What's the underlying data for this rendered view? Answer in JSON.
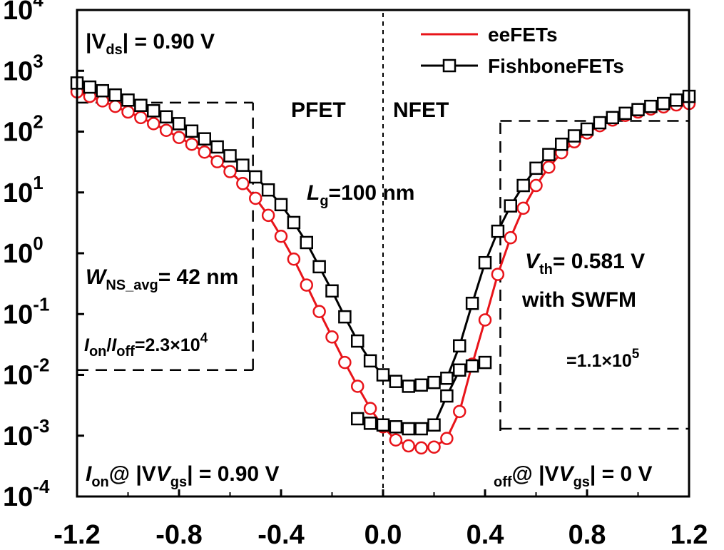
{
  "chart_data": {
    "type": "line",
    "title": "",
    "xlabel": "",
    "ylabel": "",
    "xlim": [
      -1.2,
      1.2
    ],
    "ylim_log10": [
      -4,
      4
    ],
    "y_scale": "log",
    "grid": false,
    "x_ticks": [
      "-1.2",
      "-0.8",
      "-0.4",
      "0.0",
      "0.4",
      "0.8",
      "1.2"
    ],
    "y_ticks": [
      {
        "base": "10",
        "exp": "4"
      },
      {
        "base": "10",
        "exp": "3"
      },
      {
        "base": "10",
        "exp": "2"
      },
      {
        "base": "10",
        "exp": "1"
      },
      {
        "base": "10",
        "exp": "0"
      },
      {
        "base": "10",
        "exp": "-1"
      },
      {
        "base": "10",
        "exp": "-2"
      },
      {
        "base": "10",
        "exp": "-3"
      },
      {
        "base": "10",
        "exp": "-4"
      }
    ],
    "legend": {
      "placement": "top-right",
      "entries": [
        {
          "label": "eeFETs",
          "marker": "circle",
          "color": "#e8141a"
        },
        {
          "label": "FishboneFETs",
          "marker": "square",
          "color": "#000000"
        }
      ]
    },
    "series": [
      {
        "marker": "circle",
        "color": "#e8141a",
        "points": [
          [
            -1.2,
            450
          ],
          [
            -1.15,
            380
          ],
          [
            -1.1,
            320
          ],
          [
            -1.05,
            260
          ],
          [
            -1.0,
            210
          ],
          [
            -0.95,
            170
          ],
          [
            -0.9,
            135
          ],
          [
            -0.85,
            105
          ],
          [
            -0.8,
            80
          ],
          [
            -0.75,
            62
          ],
          [
            -0.7,
            46
          ],
          [
            -0.65,
            32
          ],
          [
            -0.6,
            22
          ],
          [
            -0.55,
            14
          ],
          [
            -0.5,
            8
          ],
          [
            -0.45,
            4.2
          ],
          [
            -0.4,
            1.9
          ],
          [
            -0.35,
            0.8
          ],
          [
            -0.3,
            0.3
          ],
          [
            -0.25,
            0.11
          ],
          [
            -0.2,
            0.042
          ],
          [
            -0.15,
            0.016
          ],
          [
            -0.1,
            0.0065
          ],
          [
            -0.05,
            0.0028
          ],
          [
            0.0,
            0.0014
          ],
          [
            0.05,
            0.00085
          ],
          [
            0.1,
            0.00068
          ],
          [
            0.15,
            0.00063
          ],
          [
            0.2,
            0.00065
          ],
          [
            0.25,
            0.0009
          ],
          [
            0.3,
            0.0025
          ],
          [
            0.35,
            0.015
          ],
          [
            0.4,
            0.08
          ],
          [
            0.45,
            0.45
          ],
          [
            0.5,
            1.8
          ],
          [
            0.55,
            5.5
          ],
          [
            0.6,
            13
          ],
          [
            0.65,
            26
          ],
          [
            0.7,
            45
          ],
          [
            0.75,
            68
          ],
          [
            0.8,
            95
          ],
          [
            0.85,
            125
          ],
          [
            0.9,
            155
          ],
          [
            0.95,
            185
          ],
          [
            1.0,
            210
          ],
          [
            1.05,
            235
          ],
          [
            1.1,
            255
          ],
          [
            1.15,
            275
          ],
          [
            1.2,
            290
          ]
        ]
      },
      {
        "marker": "square",
        "color": "#000000",
        "points": [
          [
            -1.2,
            630
          ],
          [
            -1.15,
            540
          ],
          [
            -1.1,
            470
          ],
          [
            -1.05,
            400
          ],
          [
            -1.0,
            330
          ],
          [
            -0.95,
            270
          ],
          [
            -0.9,
            220
          ],
          [
            -0.85,
            175
          ],
          [
            -0.8,
            135
          ],
          [
            -0.75,
            102
          ],
          [
            -0.7,
            76
          ],
          [
            -0.65,
            56
          ],
          [
            -0.6,
            40
          ],
          [
            -0.55,
            28
          ],
          [
            -0.5,
            18
          ],
          [
            -0.45,
            11
          ],
          [
            -0.4,
            6.3
          ],
          [
            -0.35,
            3.2
          ],
          [
            -0.3,
            1.5
          ],
          [
            -0.25,
            0.6
          ],
          [
            -0.2,
            0.24
          ],
          [
            -0.15,
            0.09
          ],
          [
            -0.1,
            0.036
          ],
          [
            -0.05,
            0.017
          ],
          [
            0.0,
            0.01
          ],
          [
            0.05,
            0.0078
          ],
          [
            0.1,
            0.0065
          ],
          [
            0.15,
            0.0068
          ],
          [
            0.2,
            0.0075
          ],
          [
            0.25,
            0.0088
          ],
          [
            0.3,
            0.03
          ],
          [
            0.35,
            0.15
          ],
          [
            0.4,
            0.7
          ],
          [
            0.45,
            2.3
          ],
          [
            0.5,
            6
          ],
          [
            0.55,
            13
          ],
          [
            0.6,
            25
          ],
          [
            0.65,
            42
          ],
          [
            0.7,
            62
          ],
          [
            0.75,
            85
          ],
          [
            0.8,
            110
          ],
          [
            0.85,
            140
          ],
          [
            0.9,
            170
          ],
          [
            0.95,
            200
          ],
          [
            1.0,
            230
          ],
          [
            1.05,
            260
          ],
          [
            1.1,
            290
          ],
          [
            1.15,
            330
          ],
          [
            1.2,
            380
          ]
        ]
      },
      {
        "marker": "square",
        "color": "#000000",
        "points": [
          [
            -0.1,
            0.0019
          ],
          [
            -0.05,
            0.0016
          ],
          [
            0.0,
            0.0015
          ],
          [
            0.05,
            0.0014
          ],
          [
            0.1,
            0.0013
          ],
          [
            0.15,
            0.0013
          ],
          [
            0.2,
            0.0015
          ],
          [
            0.25,
            0.0045
          ],
          [
            0.3,
            0.012
          ],
          [
            0.35,
            0.014
          ],
          [
            0.4,
            0.016
          ]
        ]
      }
    ],
    "reference_lines": [
      {
        "kind": "horizontal",
        "y": 300,
        "x_from": -1.2,
        "x_to": -0.51
      },
      {
        "kind": "vertical",
        "x": -0.51,
        "y_from": 0.012,
        "y_to": 300
      },
      {
        "kind": "horizontal",
        "y": 0.012,
        "x_from": -1.2,
        "x_to": -0.51
      },
      {
        "kind": "vertical",
        "x": 0.0,
        "y_from": 0.0001,
        "y_to": 10000
      },
      {
        "kind": "horizontal",
        "y": 150,
        "x_from": 0.46,
        "x_to": 1.2
      },
      {
        "kind": "vertical",
        "x": 0.46,
        "y_from": 0.0012,
        "y_to": 150
      },
      {
        "kind": "horizontal",
        "y": 0.0013,
        "x_from": 0.46,
        "x_to": 1.2
      }
    ],
    "annotations": {
      "vds": {
        "v": "|V",
        "sub": "ds",
        "rest": "| = 0.90 V"
      },
      "pfet": "PFET",
      "nfet": "NFET",
      "lg": {
        "v": "L",
        "sub": "g",
        "rest": "=100 nm"
      },
      "wns": {
        "v": "W",
        "sub": "NS_avg",
        "rest": "= 42 nm"
      },
      "vth": {
        "v": "V",
        "sub": "th",
        "rest": "= 0.581 V"
      },
      "swfm": "with SWFM",
      "ratio_left": {
        "i1": "I",
        "s1": "on",
        "mid": "/",
        "i2": "I",
        "s2": "off",
        "rest": "=2.3×10",
        "exp": "4"
      },
      "ratio_right": {
        "rest": "=1.1×10",
        "exp": "5"
      },
      "ion_left": {
        "i": "I",
        "s": "on",
        "rest1": "@ |V",
        "s2": "gs",
        "rest2": "| = 0.90 V"
      },
      "ion_right": {
        "s": "off",
        "rest1": "@ |V",
        "s2": "gs",
        "rest2": "| = 0 V"
      }
    }
  }
}
